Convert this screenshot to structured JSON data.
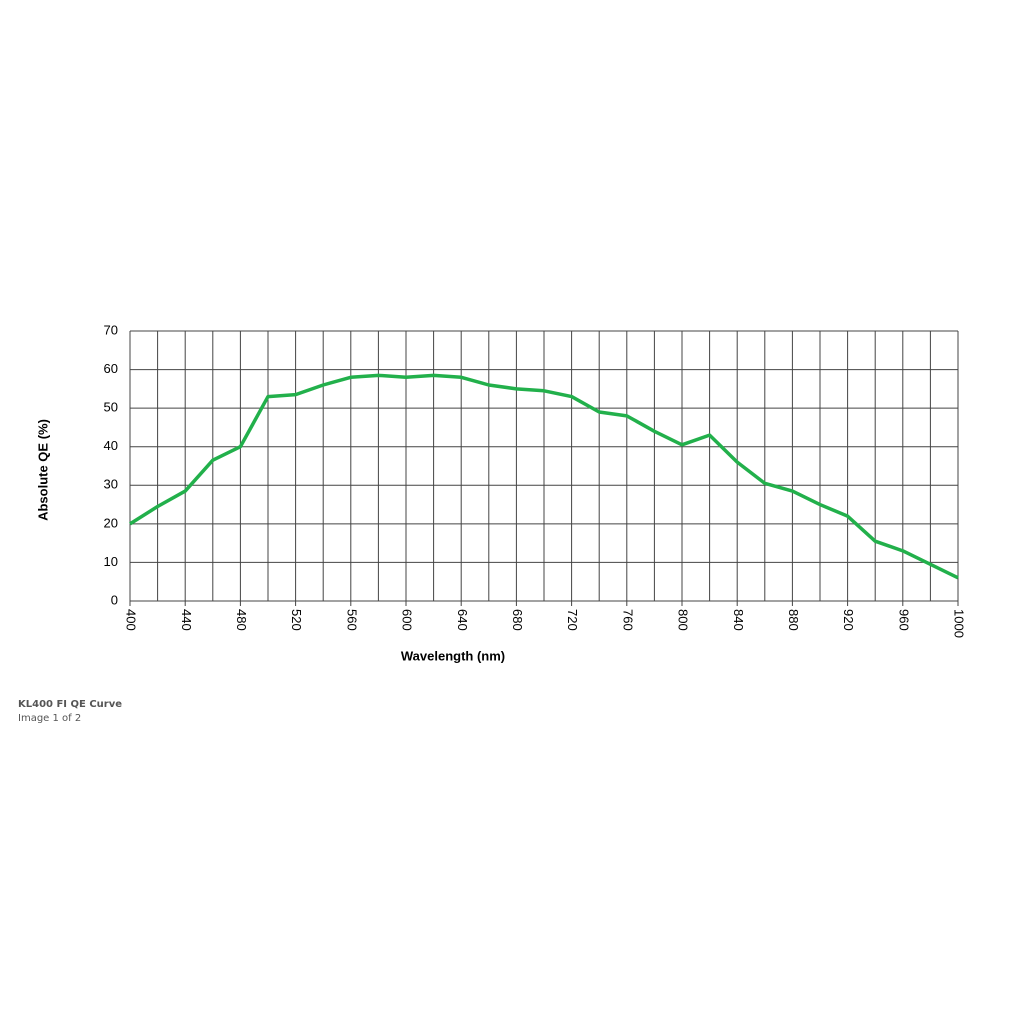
{
  "chart_data": {
    "type": "line",
    "x_label": "Wavelength (nm)",
    "y_label": "Absolute QE (%)",
    "x": [
      400,
      420,
      440,
      460,
      480,
      500,
      520,
      540,
      560,
      580,
      600,
      620,
      640,
      660,
      680,
      700,
      720,
      740,
      760,
      780,
      800,
      820,
      840,
      860,
      880,
      900,
      920,
      940,
      960,
      980,
      1000
    ],
    "series": [
      {
        "color": "#22b04b",
        "values": [
          20,
          24.5,
          28.5,
          36.5,
          40,
          53,
          53.5,
          56,
          58,
          58.5,
          58,
          58.5,
          58,
          56,
          55,
          54.5,
          53,
          49,
          48,
          44,
          40.5,
          43,
          36,
          30.5,
          28.5,
          25,
          22,
          15.5,
          13,
          9.5,
          6
        ]
      }
    ],
    "xlim": [
      400,
      1000
    ],
    "xticks": [
      400,
      440,
      480,
      520,
      560,
      600,
      640,
      680,
      720,
      760,
      800,
      840,
      880,
      920,
      960,
      1000
    ],
    "xminorticks": [
      420,
      460,
      500,
      540,
      580,
      620,
      660,
      700,
      740,
      780,
      820,
      860,
      900,
      940,
      980
    ],
    "ylim": [
      0,
      70
    ],
    "yticks": [
      0,
      10,
      20,
      30,
      40,
      50,
      60,
      70
    ],
    "grid": true
  },
  "caption": {
    "title": "KL400 FI QE Curve",
    "counter": "Image 1 of 2"
  }
}
